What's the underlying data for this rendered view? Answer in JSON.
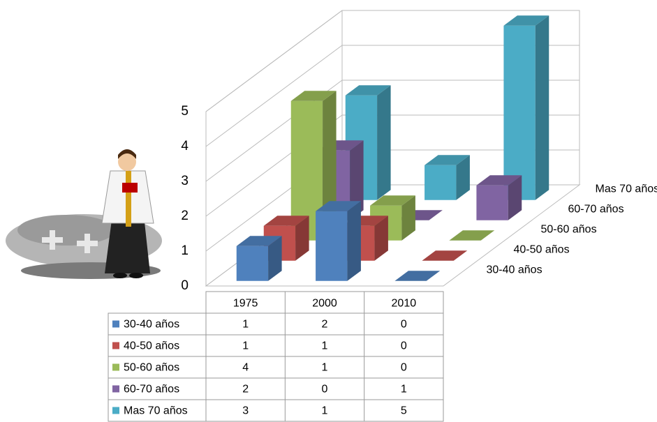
{
  "chart_data": {
    "type": "bar3d",
    "categories": [
      "1975",
      "2000",
      "2010"
    ],
    "series": [
      {
        "name": "30-40 años",
        "color": "#4f81bd",
        "values": [
          1,
          2,
          0
        ]
      },
      {
        "name": "40-50 años",
        "color": "#c0504d",
        "values": [
          1,
          1,
          0
        ]
      },
      {
        "name": "50-60 años",
        "color": "#9bbb59",
        "values": [
          4,
          1,
          0
        ]
      },
      {
        "name": "60-70 años",
        "color": "#8064a2",
        "values": [
          2,
          0,
          1
        ]
      },
      {
        "name": "Mas 70 años",
        "color": "#4bacc6",
        "values": [
          3,
          1,
          5
        ]
      }
    ],
    "ylim": [
      0,
      5
    ],
    "yticks": [
      0,
      1,
      2,
      3,
      4,
      5
    ],
    "grid": true,
    "data_table": true
  }
}
